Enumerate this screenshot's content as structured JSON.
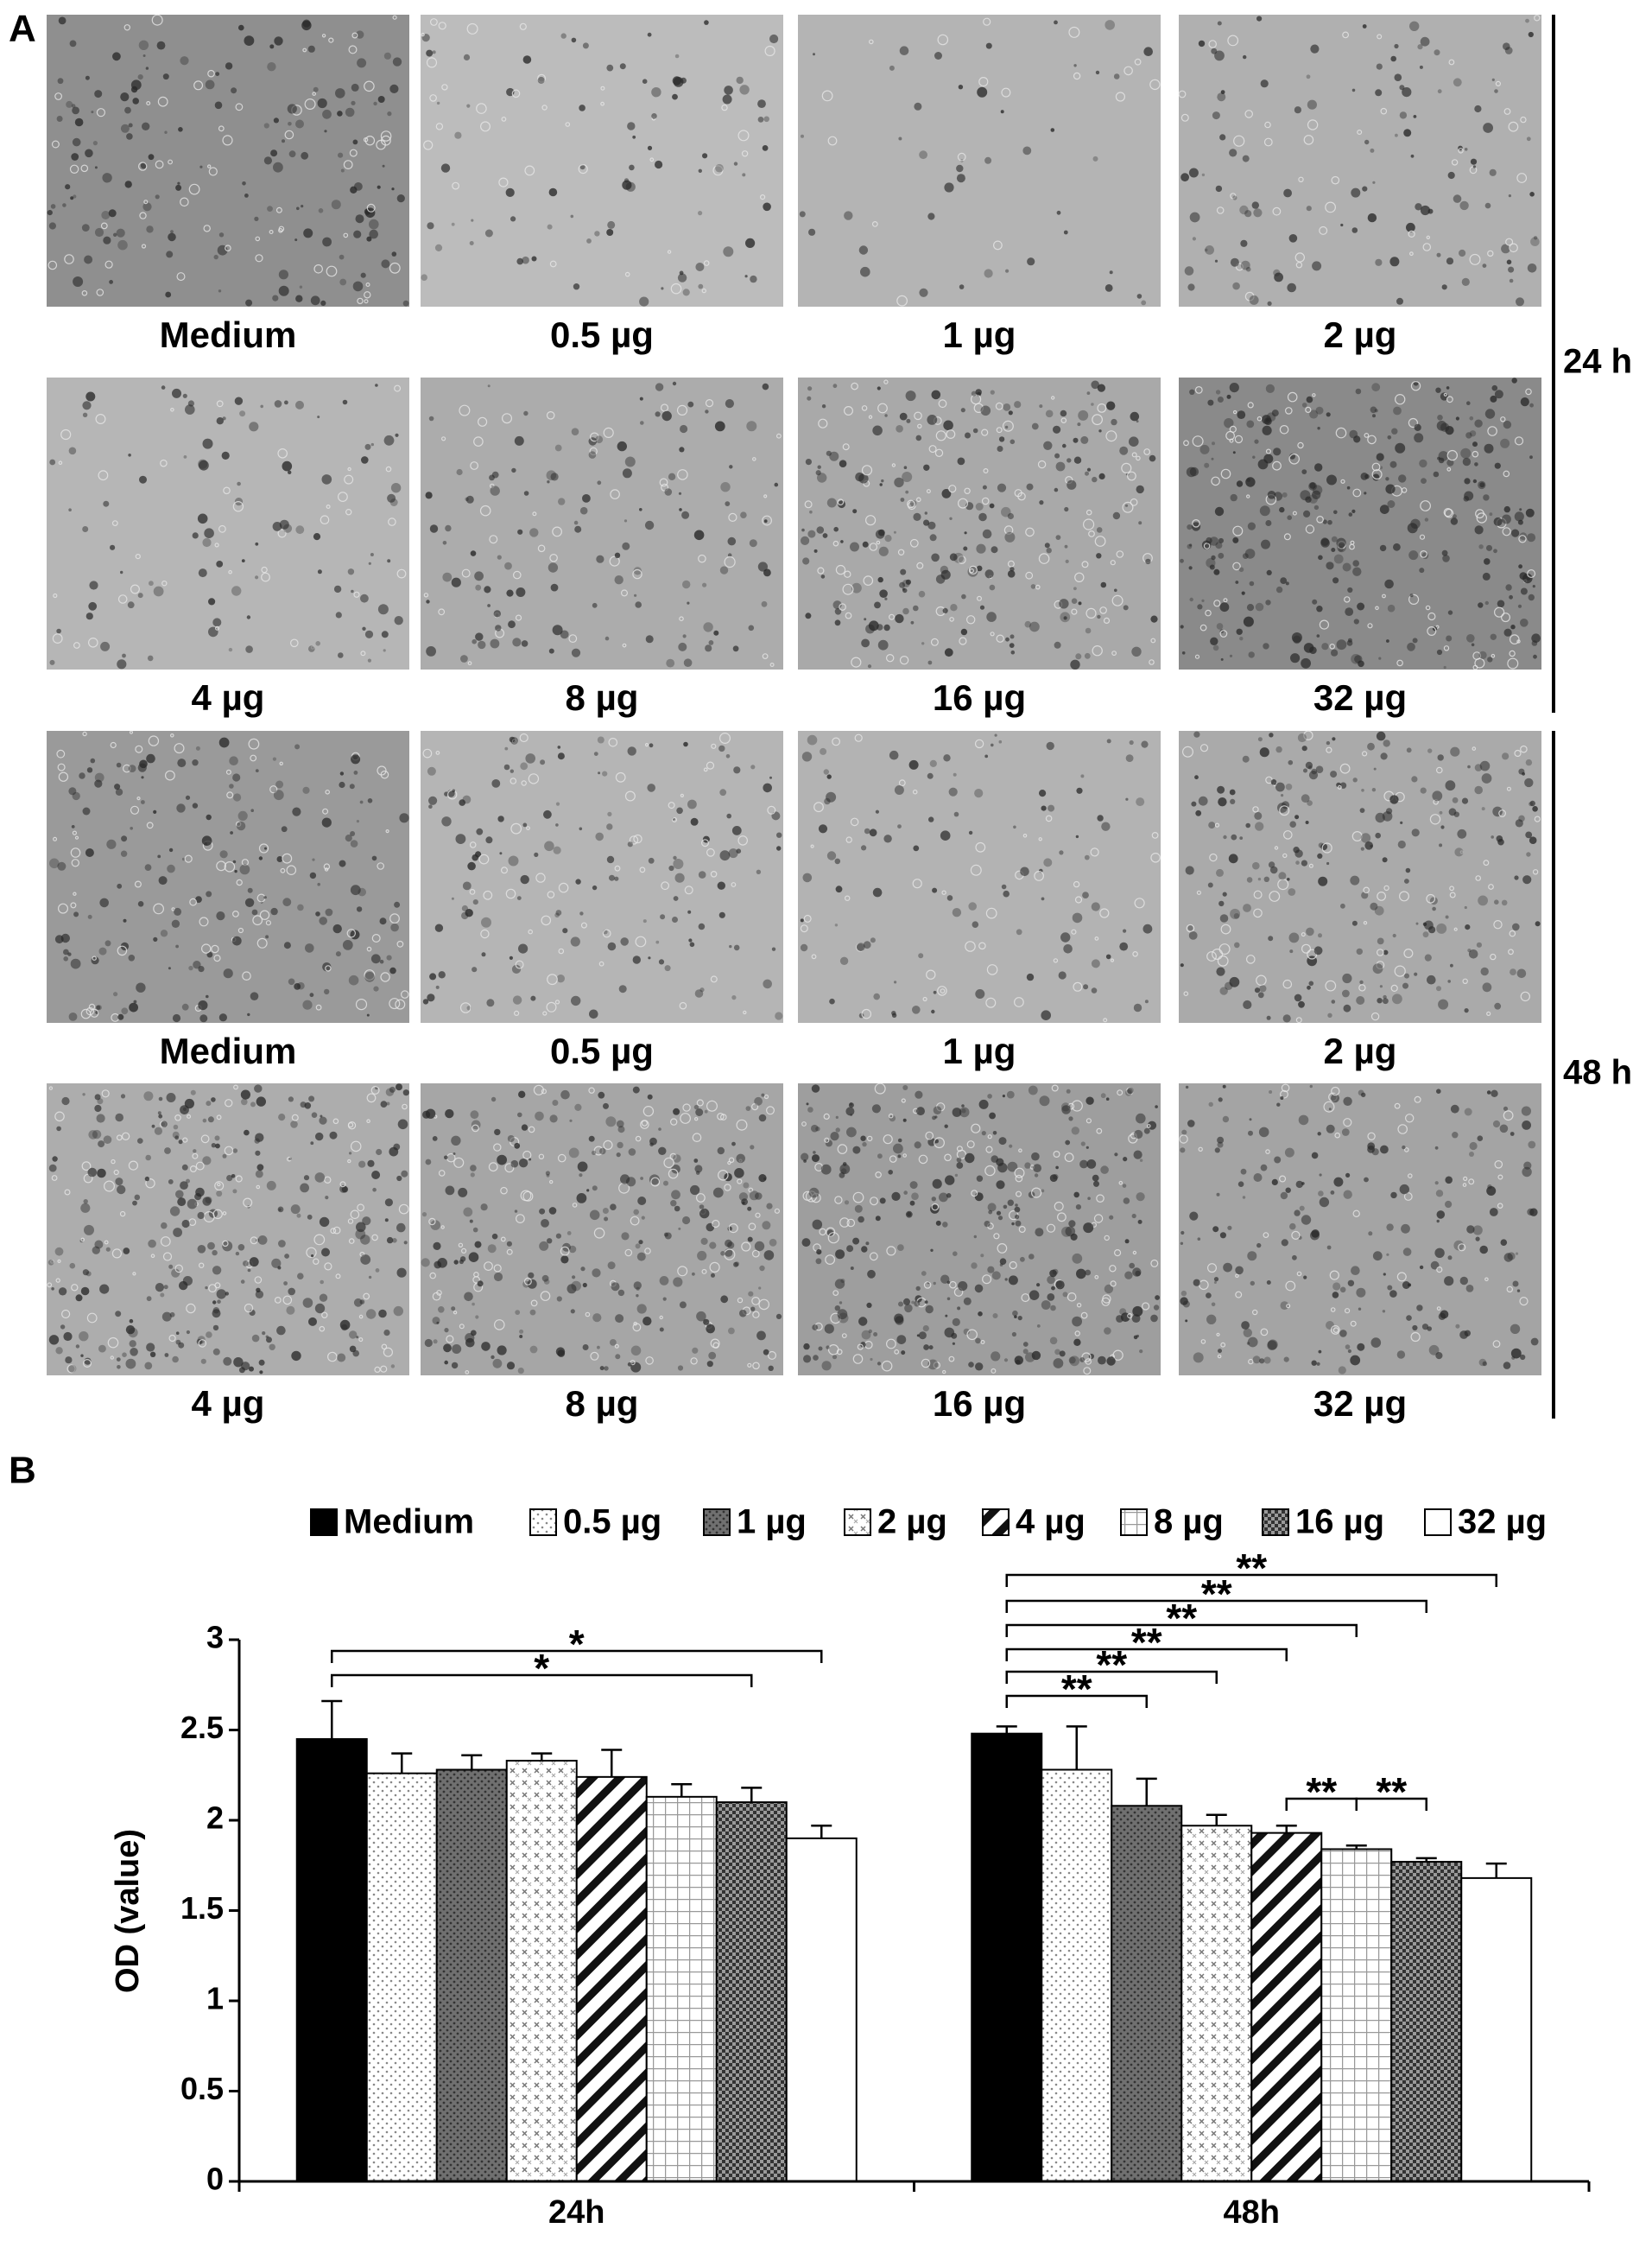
{
  "panel_a": {
    "label": "A",
    "groups": [
      {
        "time": "24 h",
        "labels": [
          "Medium",
          "0.5 µg",
          "1 µg",
          "2 µg",
          "4 µg",
          "8 µg",
          "16 µg",
          "32 µg"
        ]
      },
      {
        "time": "48 h",
        "labels": [
          "Medium",
          "0.5 µg",
          "1 µg",
          "2 µg",
          "4 µg",
          "8 µg",
          "16 µg",
          "32 µg"
        ]
      }
    ]
  },
  "chart_data": {
    "type": "bar",
    "label": "B",
    "ylabel": "OD (value)",
    "categories": [
      "24h",
      "48h"
    ],
    "series": [
      {
        "name": "Medium",
        "color": "#000000",
        "pattern": "solid",
        "values": [
          2.45,
          2.48
        ],
        "errors": [
          0.21,
          0.04
        ]
      },
      {
        "name": "0.5 µg",
        "color": "#ffffff",
        "pattern": "dots",
        "values": [
          2.26,
          2.28
        ],
        "errors": [
          0.11,
          0.24
        ]
      },
      {
        "name": "1 µg",
        "color": "#6e6e6e",
        "pattern": "dark-dots",
        "values": [
          2.28,
          2.08
        ],
        "errors": [
          0.08,
          0.15
        ]
      },
      {
        "name": "2 µg",
        "color": "#ffffff",
        "pattern": "crosses",
        "values": [
          2.33,
          1.97
        ],
        "errors": [
          0.04,
          0.06
        ]
      },
      {
        "name": "4 µg",
        "color": "#ffffff",
        "pattern": "stripes",
        "values": [
          2.24,
          1.93
        ],
        "errors": [
          0.15,
          0.04
        ]
      },
      {
        "name": "8 µg",
        "color": "#ffffff",
        "pattern": "grid",
        "values": [
          2.13,
          1.84
        ],
        "errors": [
          0.07,
          0.02
        ]
      },
      {
        "name": "16 µg",
        "color": "#555555",
        "pattern": "checks",
        "values": [
          2.1,
          1.77
        ],
        "errors": [
          0.08,
          0.02
        ]
      },
      {
        "name": "32 µg",
        "color": "#ffffff",
        "pattern": "solid",
        "values": [
          1.9,
          1.68
        ],
        "errors": [
          0.07,
          0.08
        ]
      }
    ],
    "ylim": [
      0,
      3
    ],
    "yticks": [
      0,
      0.5,
      1,
      1.5,
      2,
      2.5,
      3
    ],
    "legend": "top",
    "annotations": [
      {
        "text": "*",
        "category": "24h",
        "from": "Medium",
        "to": "32 µg"
      },
      {
        "text": "*",
        "category": "24h",
        "from": "Medium",
        "to": "16 µg"
      },
      {
        "text": "**",
        "category": "48h",
        "from": "Medium",
        "to": "32 µg"
      },
      {
        "text": "**",
        "category": "48h",
        "from": "Medium",
        "to": "16 µg"
      },
      {
        "text": "**",
        "category": "48h",
        "from": "Medium",
        "to": "8 µg"
      },
      {
        "text": "**",
        "category": "48h",
        "from": "Medium",
        "to": "4 µg"
      },
      {
        "text": "**",
        "category": "48h",
        "from": "Medium",
        "to": "2 µg"
      },
      {
        "text": "**",
        "category": "48h",
        "from": "Medium",
        "to": "1 µg"
      },
      {
        "text": "**",
        "category": "48h",
        "from": "4 µg",
        "to": "8 µg"
      },
      {
        "text": "**",
        "category": "48h",
        "from": "8 µg",
        "to": "16 µg"
      }
    ]
  }
}
